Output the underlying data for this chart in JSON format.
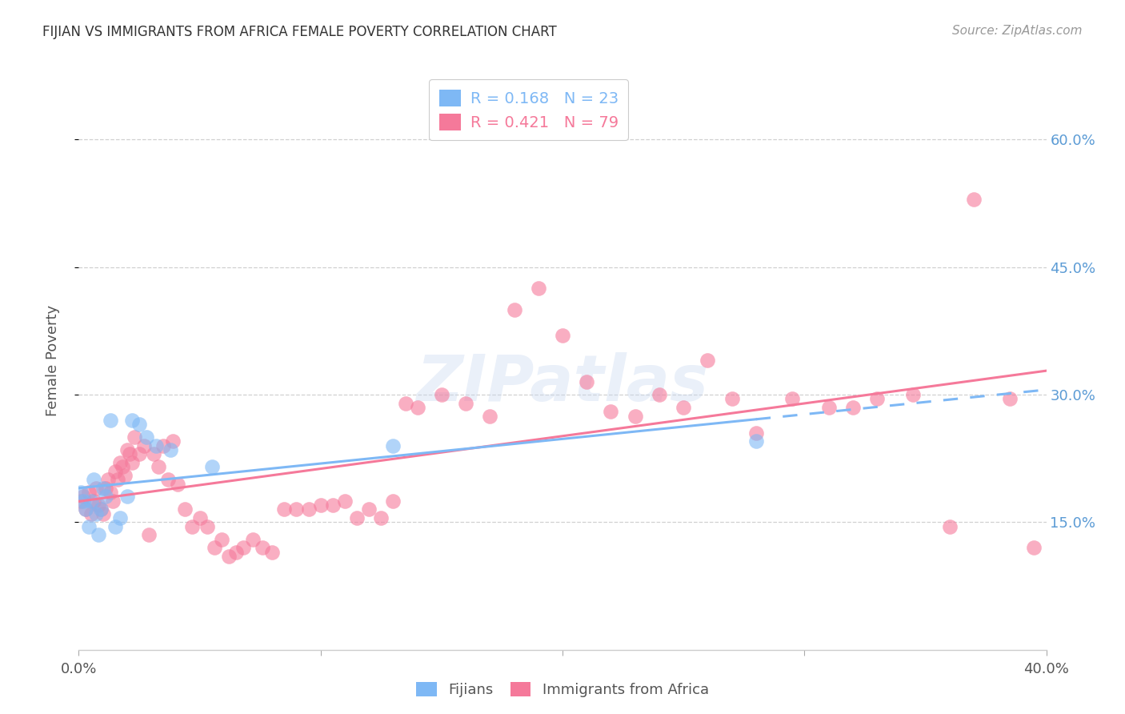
{
  "title": "FIJIAN VS IMMIGRANTS FROM AFRICA FEMALE POVERTY CORRELATION CHART",
  "source": "Source: ZipAtlas.com",
  "ylabel": "Female Poverty",
  "xlim": [
    0.0,
    0.4
  ],
  "ylim": [
    0.0,
    0.68
  ],
  "yticks": [
    0.15,
    0.3,
    0.45,
    0.6
  ],
  "ytick_labels": [
    "15.0%",
    "30.0%",
    "45.0%",
    "60.0%"
  ],
  "xticks": [
    0.0,
    0.1,
    0.2,
    0.3,
    0.4
  ],
  "xtick_labels": [
    "0.0%",
    "",
    "",
    "",
    "40.0%"
  ],
  "background_color": "#ffffff",
  "fijian_color": "#7EB8F5",
  "africa_color": "#F5799A",
  "fijian_R": 0.168,
  "fijian_N": 23,
  "africa_R": 0.421,
  "africa_N": 79,
  "fijian_x": [
    0.001,
    0.002,
    0.003,
    0.004,
    0.005,
    0.006,
    0.007,
    0.008,
    0.009,
    0.01,
    0.011,
    0.013,
    0.015,
    0.017,
    0.02,
    0.022,
    0.025,
    0.028,
    0.032,
    0.038,
    0.055,
    0.13,
    0.28
  ],
  "fijian_y": [
    0.185,
    0.175,
    0.165,
    0.145,
    0.175,
    0.2,
    0.16,
    0.135,
    0.165,
    0.19,
    0.18,
    0.27,
    0.145,
    0.155,
    0.18,
    0.27,
    0.265,
    0.25,
    0.24,
    0.235,
    0.215,
    0.24,
    0.245
  ],
  "africa_x": [
    0.001,
    0.002,
    0.003,
    0.004,
    0.005,
    0.006,
    0.007,
    0.008,
    0.009,
    0.01,
    0.011,
    0.012,
    0.013,
    0.014,
    0.015,
    0.016,
    0.017,
    0.018,
    0.019,
    0.02,
    0.021,
    0.022,
    0.023,
    0.025,
    0.027,
    0.029,
    0.031,
    0.033,
    0.035,
    0.037,
    0.039,
    0.041,
    0.044,
    0.047,
    0.05,
    0.053,
    0.056,
    0.059,
    0.062,
    0.065,
    0.068,
    0.072,
    0.076,
    0.08,
    0.085,
    0.09,
    0.095,
    0.1,
    0.105,
    0.11,
    0.115,
    0.12,
    0.125,
    0.13,
    0.135,
    0.14,
    0.15,
    0.16,
    0.17,
    0.18,
    0.19,
    0.2,
    0.21,
    0.22,
    0.23,
    0.24,
    0.25,
    0.26,
    0.27,
    0.28,
    0.295,
    0.31,
    0.32,
    0.33,
    0.345,
    0.36,
    0.37,
    0.385,
    0.395
  ],
  "africa_y": [
    0.175,
    0.18,
    0.165,
    0.185,
    0.16,
    0.175,
    0.19,
    0.17,
    0.165,
    0.16,
    0.19,
    0.2,
    0.185,
    0.175,
    0.21,
    0.2,
    0.22,
    0.215,
    0.205,
    0.235,
    0.23,
    0.22,
    0.25,
    0.23,
    0.24,
    0.135,
    0.23,
    0.215,
    0.24,
    0.2,
    0.245,
    0.195,
    0.165,
    0.145,
    0.155,
    0.145,
    0.12,
    0.13,
    0.11,
    0.115,
    0.12,
    0.13,
    0.12,
    0.115,
    0.165,
    0.165,
    0.165,
    0.17,
    0.17,
    0.175,
    0.155,
    0.165,
    0.155,
    0.175,
    0.29,
    0.285,
    0.3,
    0.29,
    0.275,
    0.4,
    0.425,
    0.37,
    0.315,
    0.28,
    0.275,
    0.3,
    0.285,
    0.34,
    0.295,
    0.255,
    0.295,
    0.285,
    0.285,
    0.295,
    0.3,
    0.145,
    0.53,
    0.295,
    0.12
  ],
  "fijian_line_solid_end": 0.28,
  "legend_R_color": "#5B9BD5",
  "legend_N_color": "#2E75B6"
}
